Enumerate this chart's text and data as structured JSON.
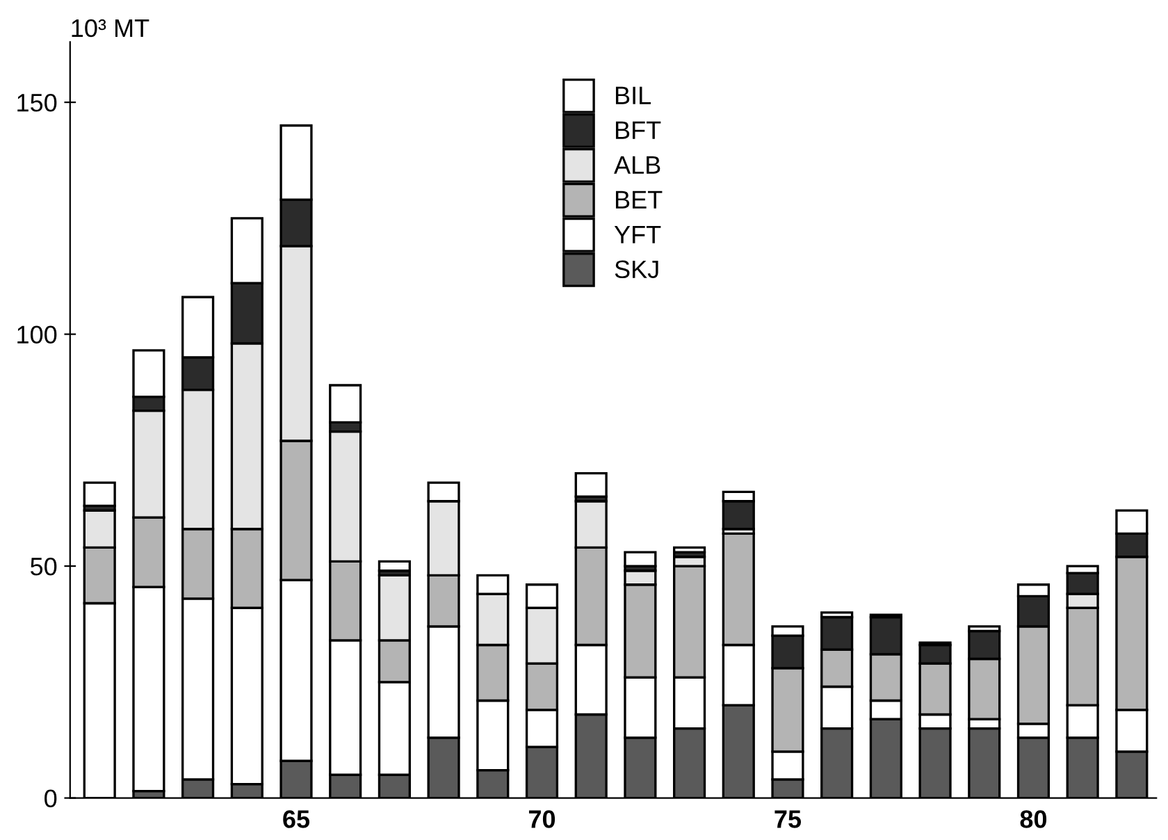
{
  "chart_data": {
    "type": "bar",
    "stacked": true,
    "ylabel": "10³ MT",
    "x": [
      1961,
      1962,
      1963,
      1964,
      1965,
      1966,
      1967,
      1968,
      1969,
      1970,
      1971,
      1972,
      1973,
      1974,
      1975,
      1976,
      1977,
      1978,
      1979,
      1980,
      1981,
      1982
    ],
    "xlim": [
      1960.4,
      1982.5
    ],
    "xticks": [
      {
        "value": 1965,
        "label": "65"
      },
      {
        "value": 1970,
        "label": "70"
      },
      {
        "value": 1975,
        "label": "75"
      },
      {
        "value": 1980,
        "label": "80"
      }
    ],
    "ylim": [
      0,
      163
    ],
    "yticks": [
      0,
      50,
      100,
      150
    ],
    "grid": false,
    "legend": "top",
    "series": [
      {
        "name": "SKJ",
        "color": "#5a5a5a",
        "values": [
          0,
          1.5,
          4,
          3,
          8,
          5,
          5,
          13,
          6,
          11,
          18,
          13,
          15,
          20,
          4,
          15,
          17,
          15,
          15,
          13,
          13,
          10
        ]
      },
      {
        "name": "YFT",
        "color": "#ffffff",
        "values": [
          42,
          44,
          39,
          38,
          39,
          29,
          20,
          24,
          15,
          8,
          15,
          13,
          11,
          13,
          6,
          9,
          4,
          3,
          2,
          3,
          7,
          9
        ]
      },
      {
        "name": "BET",
        "color": "#b4b4b4",
        "values": [
          12,
          15,
          15,
          17,
          30,
          17,
          9,
          11,
          12,
          10,
          21,
          20,
          24,
          24,
          18,
          8,
          10,
          11,
          13,
          21,
          21,
          33
        ]
      },
      {
        "name": "ALB",
        "color": "#e4e4e4",
        "values": [
          8,
          23,
          30,
          40,
          42,
          28,
          14,
          16,
          11,
          12,
          10,
          3,
          2,
          1,
          0,
          0,
          0,
          0,
          0,
          0,
          3,
          0
        ]
      },
      {
        "name": "BFT",
        "color": "#2b2b2b",
        "values": [
          1,
          3,
          7,
          13,
          10,
          2,
          1,
          0,
          0,
          0,
          1,
          1,
          1,
          6,
          7,
          7,
          8,
          4,
          6,
          6.5,
          4.5,
          5
        ]
      },
      {
        "name": "BIL",
        "color": "#ffffff",
        "values": [
          5,
          10,
          13,
          14,
          16,
          8,
          2,
          4,
          4,
          5,
          5,
          3,
          1,
          2,
          2,
          1,
          0.5,
          0.5,
          1,
          2.5,
          1.5,
          5
        ]
      }
    ]
  }
}
